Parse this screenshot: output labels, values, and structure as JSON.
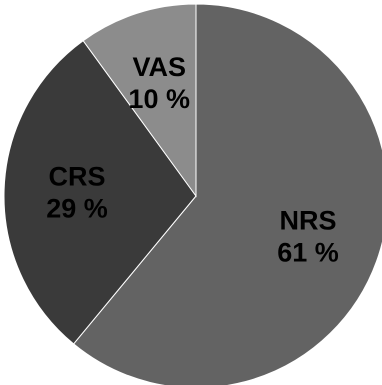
{
  "chart_data": {
    "type": "pie",
    "start_angle_deg": 0,
    "direction": "clockwise",
    "slices": [
      {
        "label": "NRS",
        "value": 61,
        "display": "61 %",
        "color": "#636363"
      },
      {
        "label": "CRS",
        "value": 29,
        "display": "29 %",
        "color": "#3a3a3a"
      },
      {
        "label": "VAS",
        "value": 10,
        "display": "10 %",
        "color": "#8c8c8c"
      }
    ]
  }
}
